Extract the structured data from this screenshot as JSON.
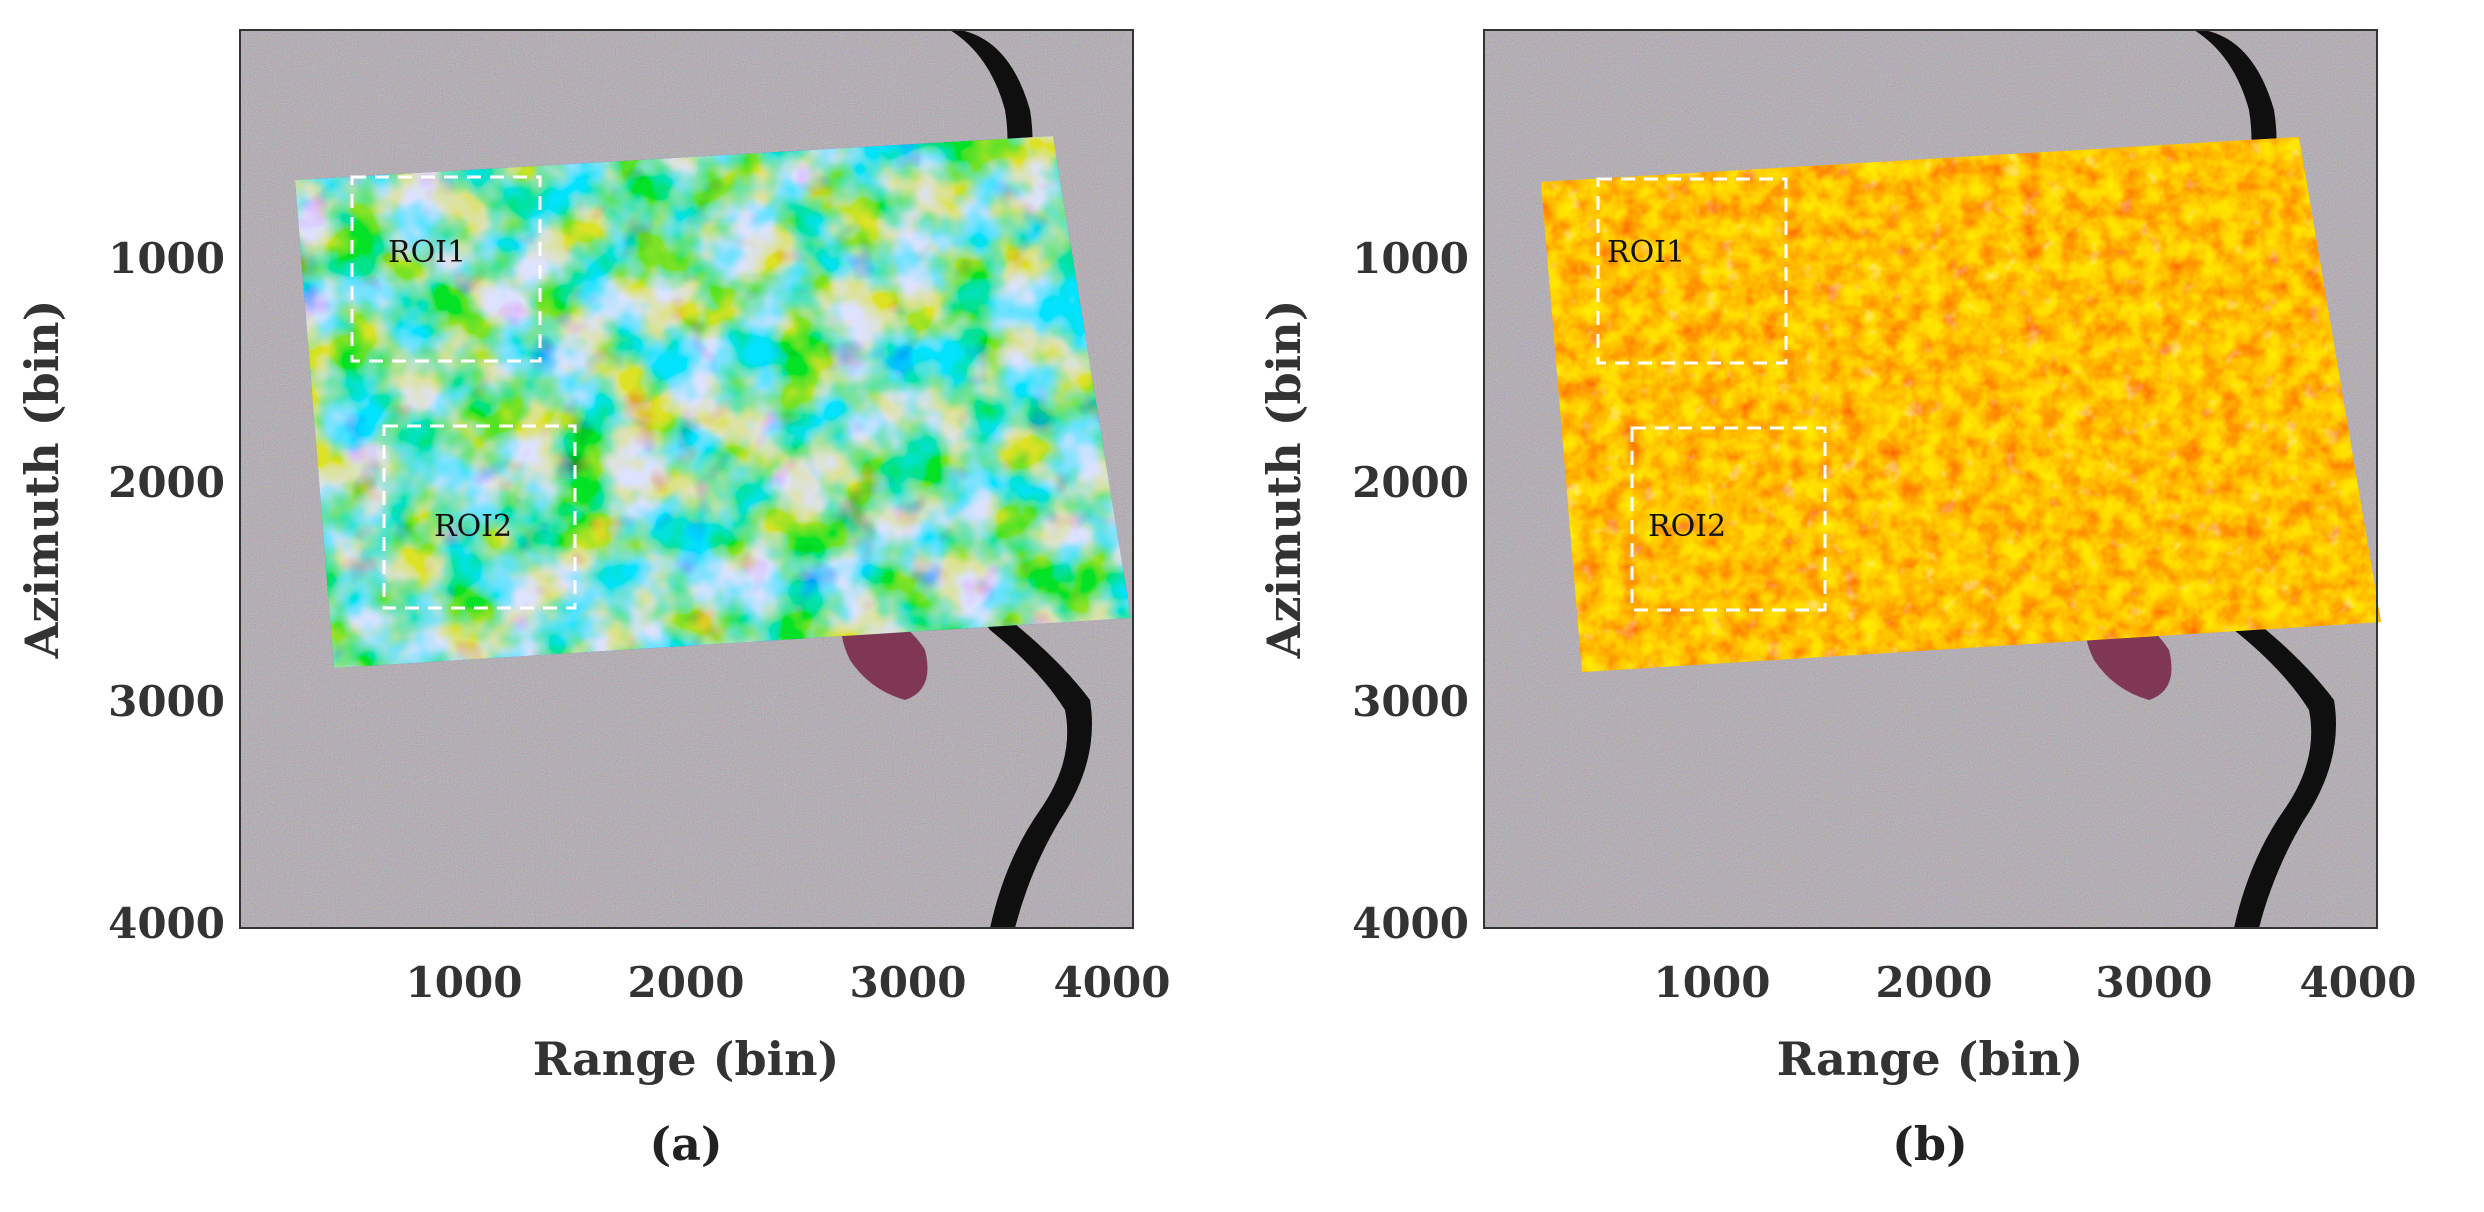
{
  "figure": {
    "panels": [
      {
        "id": "a",
        "caption": "(a)",
        "overlay_colormap": "jet (blue to red)",
        "roi_labels": [
          "ROI1",
          "ROI2"
        ]
      },
      {
        "id": "b",
        "caption": "(b)",
        "overlay_colormap": "hot (yellow to red)",
        "roi_labels": [
          "ROI1",
          "ROI2"
        ]
      }
    ],
    "xaxis": {
      "label": "Range (bin)",
      "ticks": [
        "1000",
        "2000",
        "3000",
        "4000"
      ]
    },
    "yaxis": {
      "label": "Azimuth (bin)",
      "ticks": [
        "1000",
        "2000",
        "3000",
        "4000"
      ]
    }
  },
  "colors": {
    "background_sar": "#a59d9f",
    "river": "#0f0f0f",
    "water_bodies": "#4a2f66",
    "roi_box": "#ffffff"
  }
}
